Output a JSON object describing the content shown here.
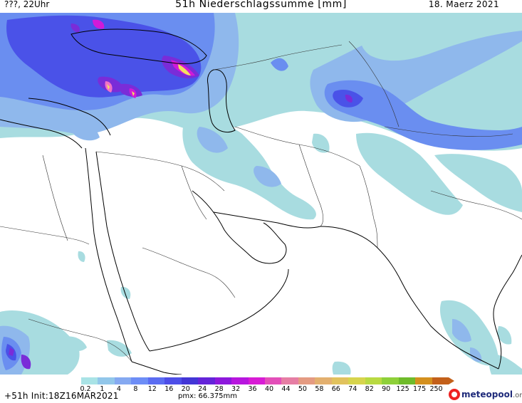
{
  "header": {
    "left_text": "???, 22Uhr",
    "title": "51h Niederschlagssumme [mm]",
    "date": "18. Maerz 2021"
  },
  "colors": {
    "light_teal": "#a8dce0",
    "light_blue": "#8fb8ec",
    "blue": "#6a8ef0",
    "dark_blue": "#4a52e8",
    "purple": "#7a2cd8",
    "magenta": "#d01ad8",
    "pink": "#f070c8",
    "yellow": "#f4e060"
  },
  "colorbar": {
    "ticks": [
      "0.2",
      "1",
      "4",
      "8",
      "12",
      "16",
      "20",
      "24",
      "28",
      "32",
      "36",
      "40",
      "44",
      "50",
      "58",
      "66",
      "74",
      "82",
      "90",
      "125",
      "175",
      "250"
    ],
    "colors": [
      "#a9e3e6",
      "#92c7ea",
      "#85a9f1",
      "#6d8df6",
      "#5b6df2",
      "#4d4ee8",
      "#4336d6",
      "#6424d9",
      "#8d18dc",
      "#b716de",
      "#d81bd5",
      "#e34fb9",
      "#e67ea4",
      "#e49b82",
      "#e3b06f",
      "#e1c25d",
      "#d7d44d",
      "#b9da42",
      "#8ed039",
      "#6fbb2a",
      "#d4901e",
      "#c3601a"
    ]
  },
  "footer": {
    "run_info": "+51h Init:18Z16MAR2021",
    "pmx": "pmx: 66.375mm",
    "logo_main": "meteopool",
    "logo_tld": ".org"
  }
}
